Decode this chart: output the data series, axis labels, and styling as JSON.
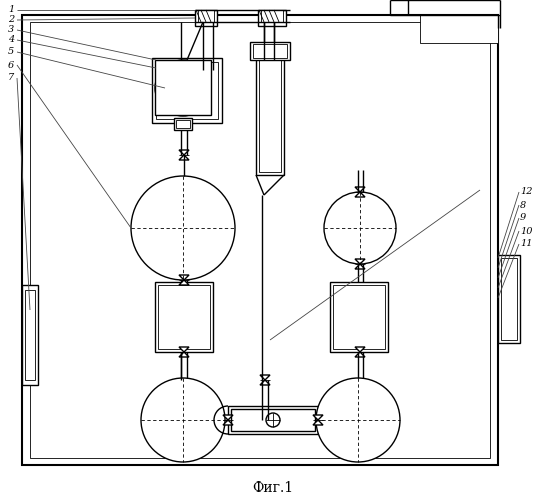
{
  "title": "Фиг.1",
  "bg_color": "#ffffff",
  "line_color": "#000000",
  "fig_caption": "Фиг.1",
  "labels_left": [
    [
      "1",
      20,
      18
    ],
    [
      "2",
      20,
      26
    ],
    [
      "3",
      20,
      34
    ],
    [
      "4",
      20,
      42
    ],
    [
      "5",
      20,
      50
    ],
    [
      "6",
      20,
      62
    ],
    [
      "7",
      20,
      75
    ]
  ],
  "labels_right": [
    [
      "12",
      510,
      195
    ],
    [
      "8",
      510,
      205
    ],
    [
      "9",
      510,
      215
    ],
    [
      "10",
      510,
      225
    ],
    [
      "11",
      510,
      235
    ]
  ]
}
